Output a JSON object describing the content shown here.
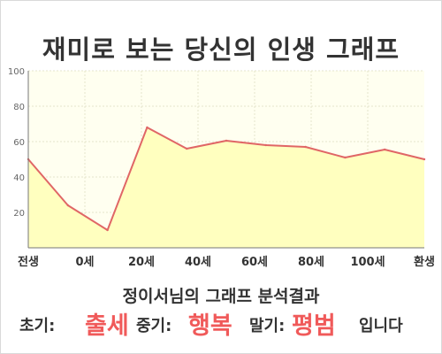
{
  "title": "재미로 보는 당신의 인생 그래프",
  "chart_data": {
    "type": "area",
    "x_tick_labels": [
      "전생",
      "0세",
      "20세",
      "40세",
      "60세",
      "80세",
      "100세",
      "환생"
    ],
    "y_ticks": [
      20,
      40,
      60,
      80,
      100
    ],
    "ylim": [
      0,
      100
    ],
    "grid": true,
    "series": [
      {
        "values": [
          50,
          24,
          10,
          68,
          56,
          60.5,
          58,
          57,
          51,
          55.5,
          50
        ]
      }
    ],
    "colors": {
      "line": "#e06666",
      "fill": "#ffffbf",
      "plot_bg": "#fffff0",
      "grid": "#e6e6cc",
      "axis": "#777777"
    }
  },
  "result": {
    "heading": "정이서님의 그래프 분석결과",
    "early_label": "초기:",
    "early_value": "출세",
    "middle_label": "중기:",
    "middle_value": "행복",
    "late_label": "말기:",
    "late_value": "평범",
    "suffix": "입니다"
  }
}
